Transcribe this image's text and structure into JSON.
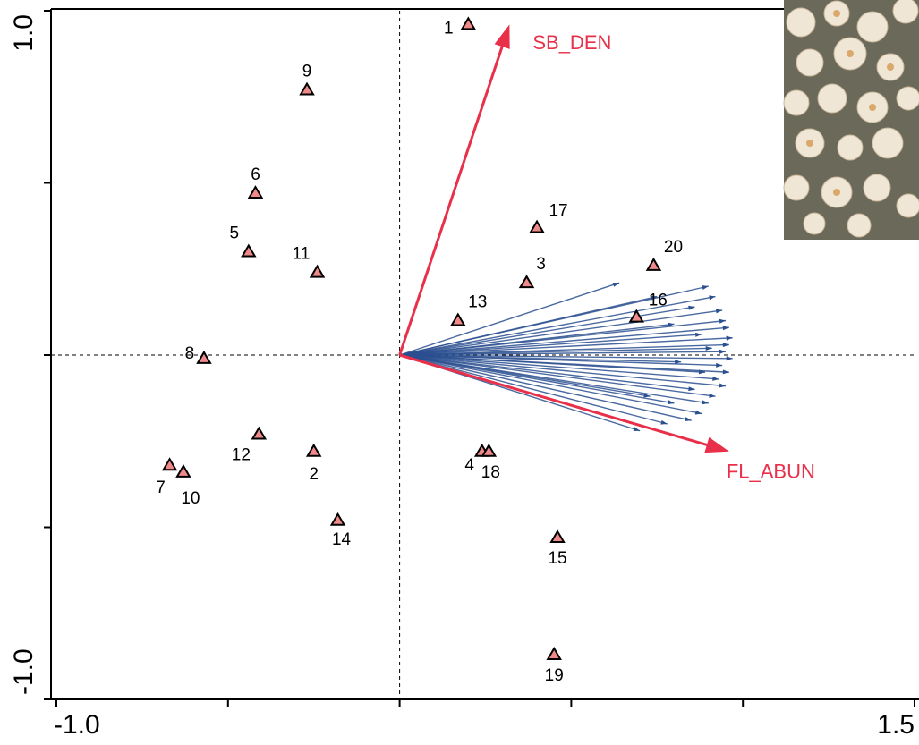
{
  "chart_data": {
    "type": "biplot",
    "xlim": [
      -1.0,
      1.5
    ],
    "ylim": [
      -1.0,
      1.0
    ],
    "xticks": [
      {
        "value": -1.0,
        "label": "-1.0"
      },
      {
        "value": 1.5,
        "label": "1.5"
      }
    ],
    "yticks": [
      {
        "value": -1.0,
        "label": "-1.0"
      },
      {
        "value": 1.0,
        "label": "1.0"
      }
    ],
    "x_minor_ticks": [
      -0.5,
      0,
      0.5,
      1.0
    ],
    "y_minor_ticks": [
      -0.5,
      0,
      0.5
    ],
    "point_color": "#f08a8a",
    "arrow_color": "#e8304a",
    "vector_color": "#2a4f8f",
    "points": [
      {
        "label": "1",
        "x": 0.2,
        "y": 0.96
      },
      {
        "label": "2",
        "x": -0.25,
        "y": -0.28
      },
      {
        "label": "3",
        "x": 0.37,
        "y": 0.21
      },
      {
        "label": "4",
        "x": 0.24,
        "y": -0.28
      },
      {
        "label": "5",
        "x": -0.44,
        "y": 0.3
      },
      {
        "label": "6",
        "x": -0.42,
        "y": 0.47
      },
      {
        "label": "7",
        "x": -0.67,
        "y": -0.32
      },
      {
        "label": "8",
        "x": -0.57,
        "y": -0.01
      },
      {
        "label": "9",
        "x": -0.27,
        "y": 0.77
      },
      {
        "label": "10",
        "x": -0.63,
        "y": -0.34
      },
      {
        "label": "11",
        "x": -0.24,
        "y": 0.24
      },
      {
        "label": "12",
        "x": -0.41,
        "y": -0.23
      },
      {
        "label": "13",
        "x": 0.17,
        "y": 0.1
      },
      {
        "label": "14",
        "x": -0.18,
        "y": -0.48
      },
      {
        "label": "15",
        "x": 0.46,
        "y": -0.53
      },
      {
        "label": "16",
        "x": 0.69,
        "y": 0.11
      },
      {
        "label": "17",
        "x": 0.4,
        "y": 0.37
      },
      {
        "label": "18",
        "x": 0.26,
        "y": -0.28
      },
      {
        "label": "19",
        "x": 0.45,
        "y": -0.87
      },
      {
        "label": "20",
        "x": 0.74,
        "y": 0.26
      }
    ],
    "arrows": [
      {
        "label": "SB_DEN",
        "x": 0.32,
        "y": 0.96
      },
      {
        "label": "FL_ABUN",
        "x": 0.96,
        "y": -0.28
      }
    ],
    "vectors": [
      {
        "x": 0.9,
        "y": 0.2
      },
      {
        "x": 0.92,
        "y": 0.17
      },
      {
        "x": 0.94,
        "y": 0.13
      },
      {
        "x": 0.95,
        "y": 0.1
      },
      {
        "x": 0.96,
        "y": 0.08
      },
      {
        "x": 0.97,
        "y": 0.05
      },
      {
        "x": 0.96,
        "y": 0.03
      },
      {
        "x": 0.95,
        "y": 0.01
      },
      {
        "x": 0.97,
        "y": -0.01
      },
      {
        "x": 0.94,
        "y": -0.03
      },
      {
        "x": 0.96,
        "y": -0.05
      },
      {
        "x": 0.93,
        "y": -0.07
      },
      {
        "x": 0.95,
        "y": -0.09
      },
      {
        "x": 0.92,
        "y": -0.12
      },
      {
        "x": 0.9,
        "y": -0.14
      },
      {
        "x": 0.88,
        "y": -0.17
      },
      {
        "x": 0.85,
        "y": -0.19
      },
      {
        "x": 0.78,
        "y": -0.2
      },
      {
        "x": 0.7,
        "y": -0.22
      },
      {
        "x": 0.64,
        "y": 0.21
      },
      {
        "x": 0.75,
        "y": 0.17
      },
      {
        "x": 0.86,
        "y": 0.14
      },
      {
        "x": 0.8,
        "y": 0.09
      },
      {
        "x": 0.88,
        "y": 0.06
      },
      {
        "x": 0.82,
        "y": -0.02
      },
      {
        "x": 0.86,
        "y": -0.1
      },
      {
        "x": 0.8,
        "y": -0.14
      },
      {
        "x": 0.73,
        "y": -0.12
      },
      {
        "x": 0.91,
        "y": 0.02
      },
      {
        "x": 0.89,
        "y": -0.05
      }
    ]
  }
}
